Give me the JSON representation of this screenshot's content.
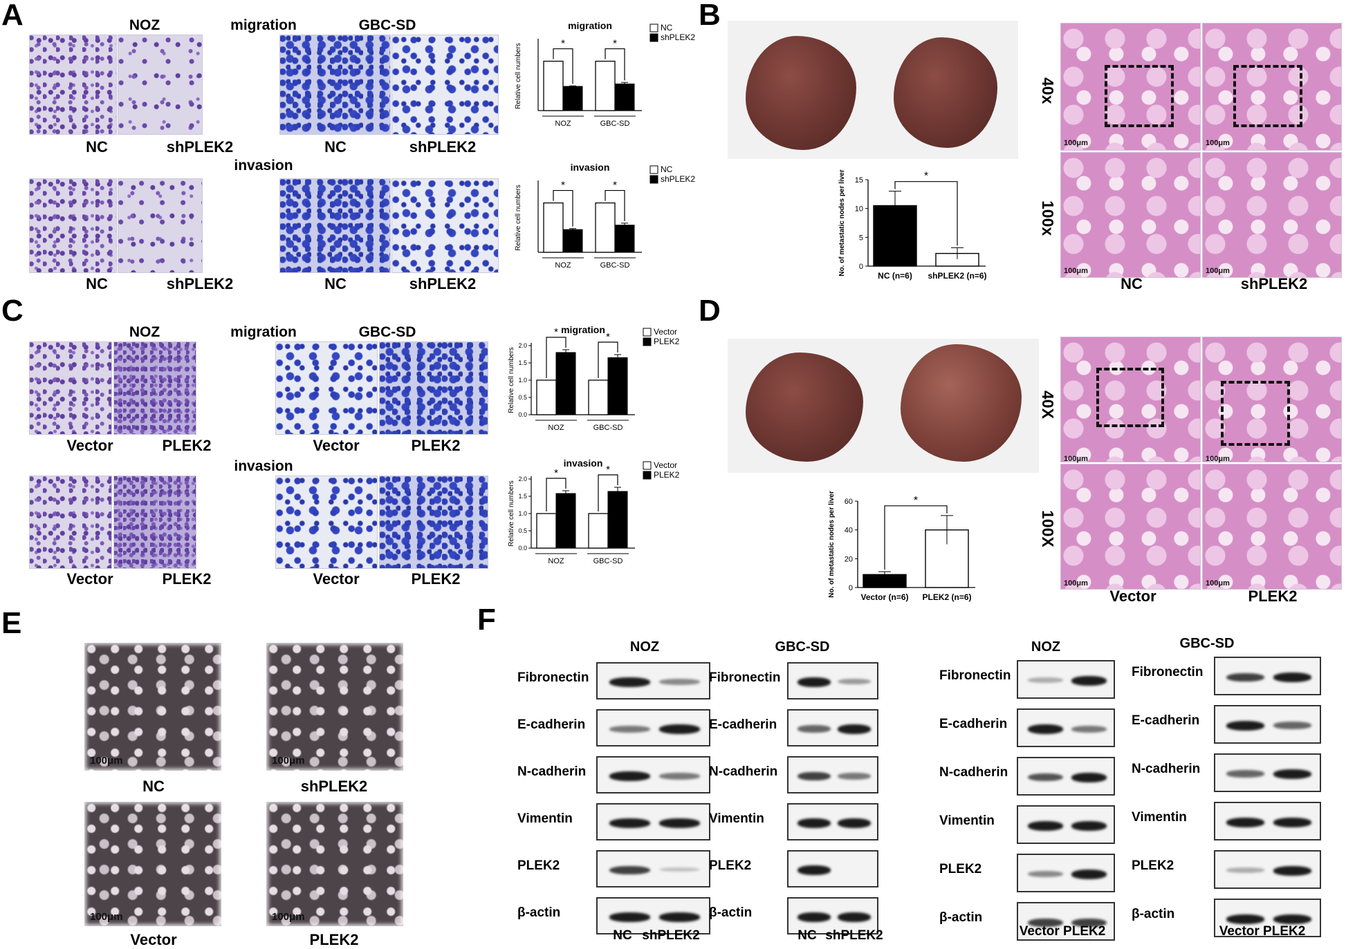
{
  "panels": {
    "a": {
      "letter": "A",
      "title_migration": "migration",
      "title_invasion": "invasion",
      "cell_noz": "NOZ",
      "cell_gbc": "GBC-SD",
      "labels": [
        "NC",
        "shPLEK2",
        "NC",
        "shPLEK2"
      ]
    },
    "b": {
      "letter": "B",
      "mag1": "40x",
      "mag2": "100x",
      "cond1": "NC",
      "cond2": "shPLEK2",
      "scale": "100μm"
    },
    "c": {
      "letter": "C",
      "title_migration": "migration",
      "title_invasion": "invasion",
      "cell_noz": "NOZ",
      "cell_gbc": "GBC-SD",
      "labels": [
        "Vector",
        "PLEK2",
        "Vector",
        "PLEK2"
      ]
    },
    "d": {
      "letter": "D",
      "mag1": "40X",
      "mag2": "100X",
      "cond1": "Vector",
      "cond2": "PLEK2",
      "scale": "100μm"
    },
    "e": {
      "letter": "E",
      "labels": [
        "NC",
        "shPLEK2",
        "Vector",
        "PLEK2"
      ],
      "scale": "100μm"
    },
    "f": {
      "letter": "F",
      "cell_noz": "NOZ",
      "cell_gbc": "GBC-SD",
      "proteins": [
        "Fibronectin",
        "E-cadherin",
        "N-cadherin",
        "Vimentin",
        "PLEK2",
        "β-actin"
      ],
      "lanes_kd_nc": "NC",
      "lanes_kd_sh": "shPLEK2",
      "lanes_oe": "Vector PLEK2"
    }
  },
  "chart_data": [
    {
      "id": "A-migration",
      "type": "bar",
      "title": "migration",
      "ylabel": "Relative cell numbers",
      "categories": [
        "NOZ",
        "GBC-SD"
      ],
      "ylim": [
        0,
        1.4
      ],
      "series": [
        {
          "name": "NC",
          "values": [
            1.0,
            1.0
          ]
        },
        {
          "name": "shPLEK2",
          "values": [
            0.49,
            0.54
          ],
          "errors": [
            0.01,
            0.03
          ]
        }
      ],
      "significance": [
        "*",
        "*"
      ]
    },
    {
      "id": "A-invasion",
      "type": "bar",
      "title": "invasion",
      "ylabel": "Relative cell numbers",
      "categories": [
        "NOZ",
        "GBC-SD"
      ],
      "ylim": [
        0,
        1.4
      ],
      "series": [
        {
          "name": "NC",
          "values": [
            1.0,
            1.0
          ]
        },
        {
          "name": "shPLEK2",
          "values": [
            0.46,
            0.55
          ],
          "errors": [
            0.02,
            0.04
          ]
        }
      ],
      "significance": [
        "*",
        "*"
      ]
    },
    {
      "id": "B-nodes",
      "type": "bar",
      "ylabel": "No. of metastatic nodes per liver",
      "categories": [
        "NC (n=6)",
        "shPLEK2 (n=6)"
      ],
      "ylim": [
        0,
        15
      ],
      "yticks": [
        0,
        5,
        10,
        15
      ],
      "values": [
        10.5,
        2.2
      ],
      "errors": [
        2.5,
        1.0
      ],
      "fills": [
        "#000000",
        "#ffffff"
      ],
      "significance": "*"
    },
    {
      "id": "C-migration",
      "type": "bar",
      "title": "migration",
      "ylabel": "Relative cell numbers",
      "categories": [
        "NOZ",
        "GBC-SD"
      ],
      "ylim": [
        0,
        2.0
      ],
      "yticks": [
        0.0,
        0.5,
        1.0,
        1.5,
        2.0
      ],
      "series": [
        {
          "name": "Vector",
          "values": [
            1.0,
            1.0
          ]
        },
        {
          "name": "PLEK2",
          "values": [
            1.8,
            1.65
          ],
          "errors": [
            0.08,
            0.09
          ]
        }
      ],
      "significance": [
        "*",
        "*"
      ]
    },
    {
      "id": "C-invasion",
      "type": "bar",
      "title": "invasion",
      "ylabel": "Relative cell numbers",
      "categories": [
        "NOZ",
        "GBC-SD"
      ],
      "ylim": [
        0,
        2.0
      ],
      "yticks": [
        0.0,
        0.5,
        1.0,
        1.5,
        2.0
      ],
      "series": [
        {
          "name": "Vector",
          "values": [
            1.0,
            1.0
          ]
        },
        {
          "name": "PLEK2",
          "values": [
            1.58,
            1.64
          ],
          "errors": [
            0.08,
            0.12
          ]
        }
      ],
      "significance": [
        "*",
        "*"
      ]
    },
    {
      "id": "D-nodes",
      "type": "bar",
      "ylabel": "No. of metastatic nodes per liver",
      "categories": [
        "Vector (n=6)",
        "PLEK2 (n=6)"
      ],
      "ylim": [
        0,
        60
      ],
      "yticks": [
        0,
        20,
        40,
        60
      ],
      "values": [
        9,
        40
      ],
      "errors": [
        2,
        10
      ],
      "fills": [
        "#000000",
        "#ffffff"
      ],
      "significance": "*"
    }
  ]
}
